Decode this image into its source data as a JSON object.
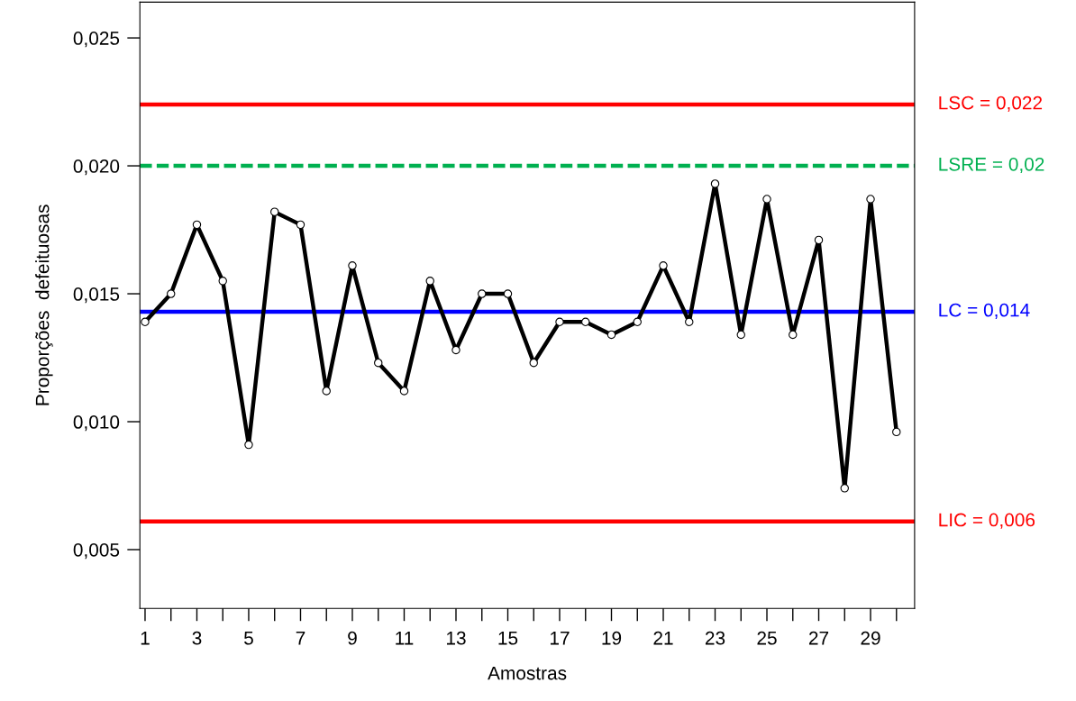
{
  "chart_data": {
    "type": "line",
    "xlabel": "Amostras",
    "ylabel": "Proporções  defeituosas",
    "x": [
      1,
      2,
      3,
      4,
      5,
      6,
      7,
      8,
      9,
      10,
      11,
      12,
      13,
      14,
      15,
      16,
      17,
      18,
      19,
      20,
      21,
      22,
      23,
      24,
      25,
      26,
      27,
      28,
      29,
      30
    ],
    "series": [
      {
        "color": "#000000",
        "values": [
          0.0139,
          0.015,
          0.0177,
          0.0155,
          0.0091,
          0.0182,
          0.0177,
          0.0112,
          0.0161,
          0.0123,
          0.0112,
          0.0155,
          0.0128,
          0.015,
          0.015,
          0.0123,
          0.0139,
          0.0139,
          0.0134,
          0.0139,
          0.0161,
          0.0139,
          0.0193,
          0.0134,
          0.0187,
          0.0134,
          0.0171,
          0.0074,
          0.0187,
          0.0096
        ]
      }
    ],
    "marker": "circle",
    "line_style": "solid",
    "grid": false,
    "legend": false,
    "xlim": [
      0.8,
      30.7
    ],
    "xticks": [
      1,
      {
        "value": 2,
        "label": null
      },
      3,
      {
        "value": 4,
        "label": null
      },
      5,
      {
        "value": 6,
        "label": null
      },
      7,
      {
        "value": 8,
        "label": null
      },
      9,
      {
        "value": 10,
        "label": null
      },
      11,
      {
        "value": 12,
        "label": null
      },
      13,
      {
        "value": 14,
        "label": null
      },
      15,
      {
        "value": 16,
        "label": null
      },
      17,
      {
        "value": 18,
        "label": null
      },
      19,
      {
        "value": 20,
        "label": null
      },
      21,
      {
        "value": 22,
        "label": null
      },
      23,
      {
        "value": 24,
        "label": null
      },
      25,
      {
        "value": 26,
        "label": null
      },
      27,
      {
        "value": 28,
        "label": null
      },
      29,
      {
        "value": 30,
        "label": null
      }
    ],
    "ylim": [
      0.0027,
      0.0264
    ],
    "yticks": [
      {
        "value": 0.005,
        "label": "0,005"
      },
      {
        "value": 0.01,
        "label": "0,010"
      },
      {
        "value": 0.015,
        "label": "0,015"
      },
      {
        "value": 0.02,
        "label": "0,020"
      },
      {
        "value": 0.025,
        "label": "0,025"
      }
    ],
    "ref_lines": [
      {
        "axis": "y",
        "value": 0.0224,
        "label": "LSC = 0,022",
        "color": "#ff0000",
        "line_style": "solid"
      },
      {
        "axis": "y",
        "value": 0.02,
        "label": "LSRE = 0,02",
        "color": "#00b050",
        "line_style": "dashed"
      },
      {
        "axis": "y",
        "value": 0.0143,
        "label": "LC = 0,014",
        "color": "#0000ff",
        "line_style": "solid"
      },
      {
        "axis": "y",
        "value": 0.0061,
        "label": "LIC = 0,006",
        "color": "#ff0000",
        "line_style": "solid"
      }
    ]
  }
}
